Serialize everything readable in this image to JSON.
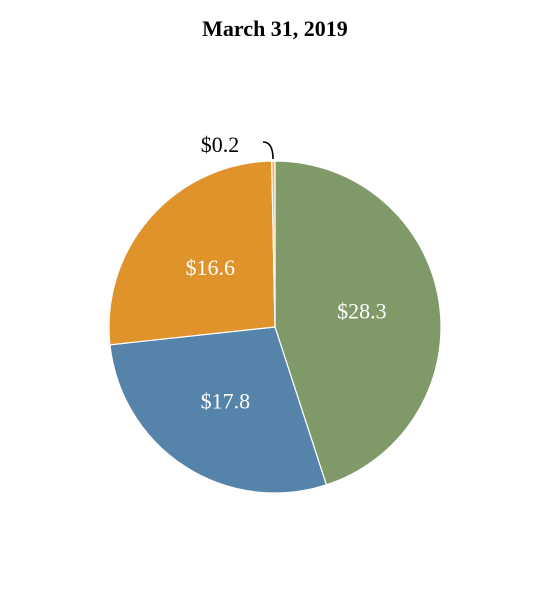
{
  "chart_data": {
    "type": "pie",
    "title": "March 31, 2019",
    "slices": [
      {
        "label": "$28.3",
        "value": 28.3,
        "color": "#7f9968",
        "label_color": "#ffffff"
      },
      {
        "label": "$17.8",
        "value": 17.8,
        "color": "#5683a9",
        "label_color": "#ffffff"
      },
      {
        "label": "$16.6",
        "value": 16.6,
        "color": "#e0932a",
        "label_color": "#ffffff"
      },
      {
        "label": "$0.2",
        "value": 0.2,
        "color": "#f0b66a",
        "label_color": "#000000"
      }
    ],
    "start": "top",
    "direction": "clockwise",
    "legend": "none"
  }
}
